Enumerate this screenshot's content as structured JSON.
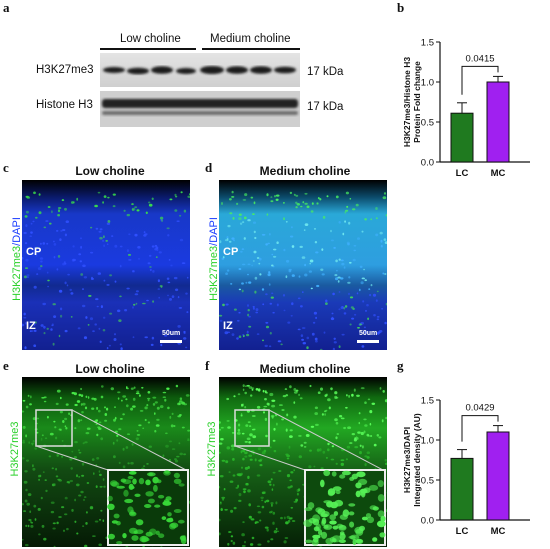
{
  "panels": {
    "a": "a",
    "b": "b",
    "c": "c",
    "d": "d",
    "e": "e",
    "f": "f",
    "g": "g"
  },
  "blot": {
    "groups": [
      "Low choline",
      "Medium choline"
    ],
    "rows": [
      {
        "name": "H3K27me3",
        "size": "17 kDa"
      },
      {
        "name": "Histone H3",
        "size": "17 kDa"
      }
    ],
    "colors": {
      "band": "#1a1a1a",
      "bg": "#d9d9d9"
    }
  },
  "micrographs": {
    "c": {
      "title": "Low choline",
      "ylabel_green": "H3K27me3",
      "ylabel_blue": "/DAPI",
      "cp": "CP",
      "iz": "IZ",
      "scale": "50um"
    },
    "d": {
      "title": "Medium choline",
      "ylabel_green": "H3K27me3",
      "ylabel_blue": "/DAPI",
      "cp": "CP",
      "iz": "IZ",
      "scale": "50um"
    },
    "e": {
      "title": "Low choline",
      "ylabel": "H3K27me3"
    },
    "f": {
      "title": "Medium choline",
      "ylabel": "H3K27me3"
    },
    "colors": {
      "green": "#2bd12b",
      "blue": "#1a3cff"
    }
  },
  "chart_data": [
    {
      "type": "bar",
      "categories": [
        "LC",
        "MC"
      ],
      "values": [
        0.61,
        1.0
      ],
      "errors": [
        0.13,
        0.07
      ],
      "colors": [
        "#1f7a1f",
        "#a020f0"
      ],
      "ylabel": "H3K27me3/Histone H3 Protein Fold change",
      "ylabel_lines": [
        "H3K27me3/Histone H3",
        "Protein Fold change"
      ],
      "ylim": [
        0,
        1.5
      ],
      "yticks": [
        "0.0",
        "0.5",
        "1.0",
        "1.5"
      ],
      "annotation": "0.0415"
    },
    {
      "type": "bar",
      "categories": [
        "LC",
        "MC"
      ],
      "values": [
        0.77,
        1.1
      ],
      "errors": [
        0.11,
        0.08
      ],
      "colors": [
        "#1f7a1f",
        "#a020f0"
      ],
      "ylabel": "H3K27me3/DAPI Integrated density (AU)",
      "ylabel_lines": [
        "H3K27me3/DAPI",
        "Integrated density (AU)"
      ],
      "ylim": [
        0,
        1.5
      ],
      "yticks": [
        "0.0",
        "0.5",
        "1.0",
        "1.5"
      ],
      "annotation": "0.0429"
    }
  ]
}
